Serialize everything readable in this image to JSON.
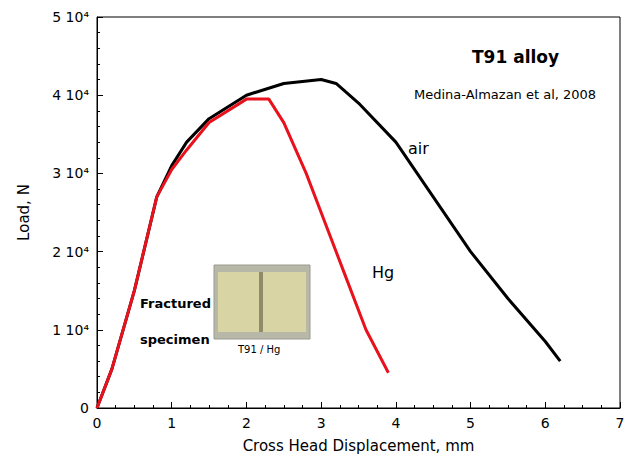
{
  "chart_data": {
    "type": "line",
    "title": "T91 alloy",
    "subtitle": "Medina-Almazan et al, 2008",
    "xlabel": "Cross Head Displacement, mm",
    "ylabel": "Load, N",
    "annotations": [
      "Fractured specimen",
      "T91 / Hg"
    ],
    "series": [
      {
        "name": "air",
        "color": "#000000",
        "x": [
          0,
          0.2,
          0.5,
          0.8,
          1.0,
          1.2,
          1.5,
          2.0,
          2.5,
          3.0,
          3.2,
          3.5,
          4.0,
          4.5,
          5.0,
          5.5,
          6.0,
          6.2
        ],
        "values": [
          0,
          5000,
          15000,
          27000,
          31000,
          34000,
          37000,
          40000,
          41500,
          42000,
          41500,
          39000,
          34000,
          27000,
          20000,
          14000,
          8500,
          6000
        ]
      },
      {
        "name": "Hg",
        "color": "#e8111c",
        "x": [
          0,
          0.2,
          0.5,
          0.8,
          1.0,
          1.2,
          1.5,
          2.0,
          2.3,
          2.5,
          2.8,
          3.0,
          3.3,
          3.6,
          3.9
        ],
        "values": [
          0,
          5000,
          15000,
          27000,
          30500,
          33000,
          36500,
          39500,
          39500,
          36500,
          30000,
          25000,
          17500,
          10000,
          4500
        ]
      }
    ],
    "xlim": [
      0,
      7
    ],
    "xticks": [
      0,
      1,
      2,
      3,
      4,
      5,
      6,
      7
    ],
    "ylim": [
      0,
      50000
    ],
    "yticks": [
      0,
      {
        "value": 10000,
        "label": "1 10⁴"
      },
      {
        "value": 20000,
        "label": "2 10⁴"
      },
      {
        "value": 30000,
        "label": "3 10⁴"
      },
      {
        "value": 40000,
        "label": "4 10⁴"
      },
      {
        "value": 50000,
        "label": "5 10⁴"
      }
    ],
    "grid": false
  }
}
